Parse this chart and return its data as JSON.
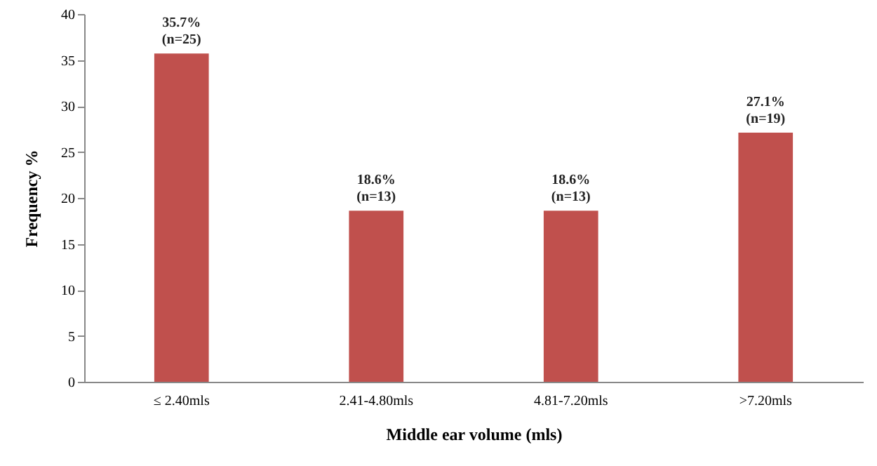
{
  "chart_data": {
    "type": "bar",
    "xlabel": "Middle ear volume (mls)",
    "ylabel": "Frequency %",
    "categories": [
      "≤ 2.40mls",
      "2.41-4.80mls",
      "4.81-7.20mls",
      ">7.20mls"
    ],
    "values": [
      35.7,
      18.6,
      18.6,
      27.1
    ],
    "color": "#c0504d",
    "value_labels": [
      "35.7%\n(n=25)",
      "18.6%\n(n=13)",
      "18.6%\n(n=13)",
      "27.1%\n(n=19)"
    ],
    "ylim": [
      0,
      40
    ],
    "yticks": [
      0,
      5,
      10,
      15,
      20,
      25,
      30,
      35,
      40
    ],
    "grid": false
  }
}
